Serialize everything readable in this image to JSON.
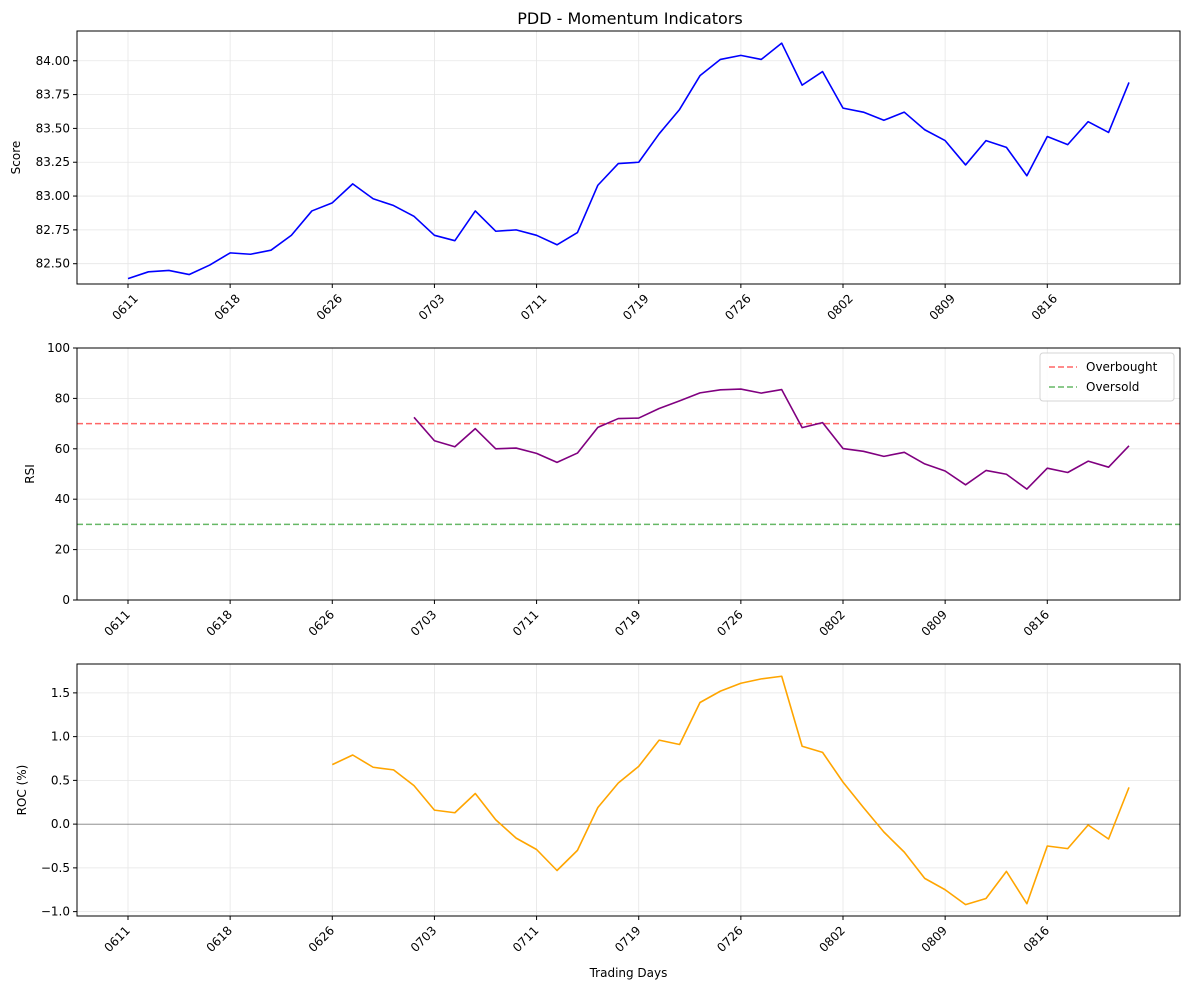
{
  "figure": {
    "title": "PDD - Momentum Indicators"
  },
  "chart_data": [
    {
      "type": "line",
      "title": "PDD - Momentum Indicators",
      "xlabel": "",
      "ylabel": "Score",
      "xtick_labels": [
        "0611",
        "0618",
        "0626",
        "0703",
        "0711",
        "0719",
        "0726",
        "0802",
        "0809",
        "0816"
      ],
      "ylim": [
        82.35,
        84.22
      ],
      "yticks": [
        82.5,
        82.75,
        83.0,
        83.25,
        83.5,
        83.75,
        84.0
      ],
      "ytick_labels": [
        "82.50",
        "82.75",
        "83.00",
        "83.25",
        "83.50",
        "83.75",
        "84.00"
      ],
      "grid": true,
      "series": [
        {
          "color": "#0000ff",
          "values": [
            82.39,
            82.44,
            82.45,
            82.42,
            82.49,
            82.58,
            82.57,
            82.6,
            82.71,
            82.89,
            82.95,
            83.09,
            82.98,
            82.93,
            82.85,
            82.71,
            82.67,
            82.89,
            82.74,
            82.75,
            82.71,
            82.64,
            82.73,
            83.08,
            83.24,
            83.25,
            83.46,
            83.64,
            83.89,
            84.01,
            84.04,
            84.01,
            84.13,
            83.82,
            83.92,
            83.65,
            83.62,
            83.56,
            83.62,
            83.49,
            83.41,
            83.23,
            83.41,
            83.36,
            83.15,
            83.44,
            83.38,
            83.55,
            83.47,
            83.84
          ]
        }
      ]
    },
    {
      "type": "line",
      "title": "",
      "xlabel": "",
      "ylabel": "RSI",
      "xtick_labels": [
        "0611",
        "0618",
        "0626",
        "0703",
        "0711",
        "0719",
        "0726",
        "0802",
        "0809",
        "0816"
      ],
      "ylim": [
        0,
        100
      ],
      "yticks": [
        0,
        20,
        40,
        60,
        80,
        100
      ],
      "ytick_labels": [
        "0",
        "20",
        "40",
        "60",
        "80",
        "100"
      ],
      "grid": true,
      "legend_position": "top-right",
      "series": [
        {
          "color": "#800080",
          "start_index": 14,
          "values": [
            72.5,
            63.2,
            60.8,
            68.0,
            60.0,
            60.3,
            58.2,
            54.6,
            58.3,
            68.5,
            72.0,
            72.2,
            76.0,
            79.0,
            82.2,
            83.4,
            83.7,
            82.1,
            83.5,
            68.4,
            70.4,
            60.1,
            59.0,
            57.0,
            58.6,
            54.0,
            51.2,
            45.7,
            51.4,
            49.9,
            44.0,
            52.3,
            50.6,
            55.1,
            52.7,
            61.2
          ]
        }
      ],
      "reference_lines": [
        {
          "name": "Overbought",
          "value": 70,
          "color": "#ff6666"
        },
        {
          "name": "Oversold",
          "value": 30,
          "color": "#66b866"
        }
      ]
    },
    {
      "type": "line",
      "title": "",
      "xlabel": "Trading Days",
      "ylabel": "ROC (%)",
      "xtick_labels": [
        "0611",
        "0618",
        "0626",
        "0703",
        "0711",
        "0719",
        "0726",
        "0802",
        "0809",
        "0816"
      ],
      "ylim": [
        -1.05,
        1.83
      ],
      "yticks": [
        -1.0,
        -0.5,
        0.0,
        0.5,
        1.0,
        1.5
      ],
      "ytick_labels": [
        "−1.0",
        "−0.5",
        "0.0",
        "0.5",
        "1.0",
        "1.5"
      ],
      "grid": true,
      "zero_line": true,
      "series": [
        {
          "color": "#ffa500",
          "start_index": 10,
          "values": [
            0.68,
            0.79,
            0.65,
            0.62,
            0.44,
            0.16,
            0.13,
            0.35,
            0.05,
            -0.16,
            -0.29,
            -0.53,
            -0.3,
            0.19,
            0.47,
            0.66,
            0.96,
            0.91,
            1.39,
            1.52,
            1.61,
            1.66,
            1.69,
            0.89,
            0.82,
            0.48,
            0.19,
            -0.09,
            -0.32,
            -0.62,
            -0.75,
            -0.92,
            -0.85,
            -0.54,
            -0.91,
            -0.25,
            -0.28,
            -0.01,
            -0.17,
            0.42
          ]
        }
      ]
    }
  ]
}
